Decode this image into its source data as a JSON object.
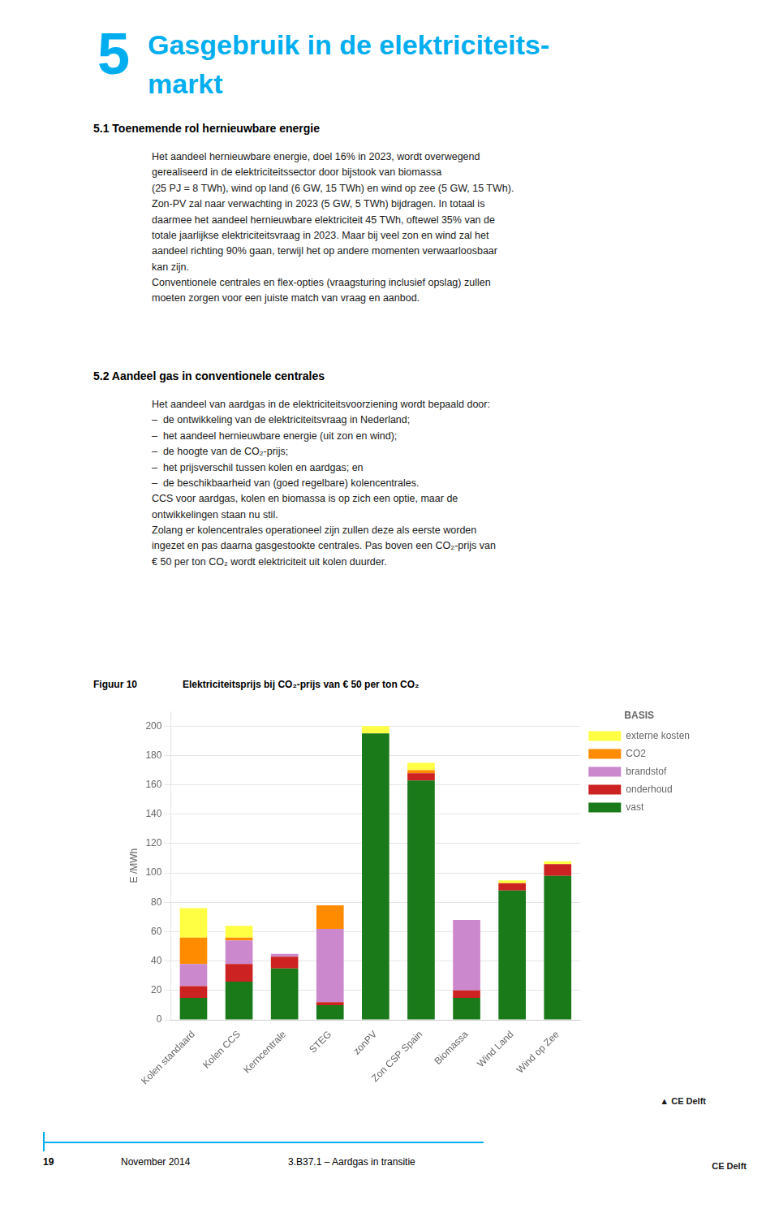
{
  "accent_color": "#00AEEF",
  "chapter": {
    "number": "5",
    "title_lines": [
      "Gasgebruik in de elektriciteits-",
      "markt"
    ]
  },
  "sections": [
    {
      "title": "5.1   Toenemende rol hernieuwbare energie",
      "text": "Het aandeel hernieuwbare energie, doel 16% in 2023, wordt overwegend\ngerealiseerd in de elektriciteitssector door bijstook van biomassa\n(25 PJ = 8 TWh), wind op land (6 GW, 15 TWh) en wind op zee (5 GW, 15 TWh).\nZon-PV zal naar verwachting in 2023 (5 GW, 5 TWh) bijdragen. In totaal is\ndaarmee het aandeel hernieuwbare elektriciteit 45 TWh, oftewel 35% van de\ntotale jaarlijkse elektriciteitsvraag in 2023. Maar bij veel zon en wind zal het\naandeel richting 90% gaan, terwijl het op andere momenten verwaarloosbaar\nkan zijn.\nConventionele centrales en flex-opties (vraagsturing inclusief opslag) zullen\nmoeten zorgen voor een juiste match van vraag en aanbod."
    },
    {
      "title": "5.2   Aandeel gas in conventionele centrales",
      "text": "Het aandeel van aardgas in de elektriciteitsvoorziening wordt bepaald door:\n–  de ontwikkeling van de elektriciteitsvraag in Nederland;\n–  het aandeel hernieuwbare energie (uit zon en wind);\n–  de hoogte van de CO₂-prijs;\n–  het prijsverschil tussen kolen en aardgas; en\n–  de beschikbaarheid van (goed regelbare) kolencentrales.\nCCS voor aardgas, kolen en biomassa is op zich een optie, maar de\nontwikkelingen staan nu stil.\nZolang er kolencentrales operationeel zijn zullen deze als eerste worden\ningezet en pas daarna gasgestookte centrales. Pas boven een CO₂-prijs van\n€ 50 per ton CO₂ wordt elektriciteit uit kolen duurder."
    }
  ],
  "figure_label": "Figuur 10",
  "chart_data": {
    "type": "bar",
    "title": "Elektriciteitsprijs bij CO₂-prijs van € 50 per ton CO₂",
    "categories": [
      "Kolen standaard",
      "Kolen CCS",
      "Kerncentrale",
      "STEG",
      "zonPV",
      "Zon CSP Spain",
      "Biomassa",
      "Wind Land",
      "Wind op Zee"
    ],
    "series": [
      {
        "name": "vast",
        "color": "#1a7a1a",
        "values": [
          15,
          26,
          35,
          10,
          195,
          163,
          15,
          88,
          98
        ]
      },
      {
        "name": "onderhoud",
        "color": "#CC2222",
        "values": [
          8,
          12,
          8,
          2,
          0,
          5,
          5,
          5,
          8
        ]
      },
      {
        "name": "brandstof",
        "color": "#CC88CC",
        "values": [
          15,
          16,
          2,
          50,
          0,
          0,
          48,
          0,
          0
        ]
      },
      {
        "name": "CO2",
        "color": "#FF8C00",
        "values": [
          18,
          2,
          0,
          16,
          0,
          2,
          0,
          0,
          0
        ]
      },
      {
        "name": "externe kosten",
        "color": "#FFFF44",
        "values": [
          20,
          8,
          0,
          0,
          5,
          5,
          0,
          2,
          2
        ]
      }
    ],
    "stacked": true,
    "ylabel": "E /MWh",
    "ylim": [
      0,
      210
    ],
    "yticks": [
      0,
      20,
      40,
      60,
      80,
      100,
      120,
      140,
      160,
      180,
      200
    ],
    "grid": "y",
    "legend": "right",
    "legend_title": "BASIS",
    "annotations": [
      "▲ CE Delft"
    ]
  },
  "footer": {
    "page": "19",
    "date": "November 2014",
    "reference": "3.B37.1 – Aardgas in transitie",
    "logo": "CE Delft"
  }
}
